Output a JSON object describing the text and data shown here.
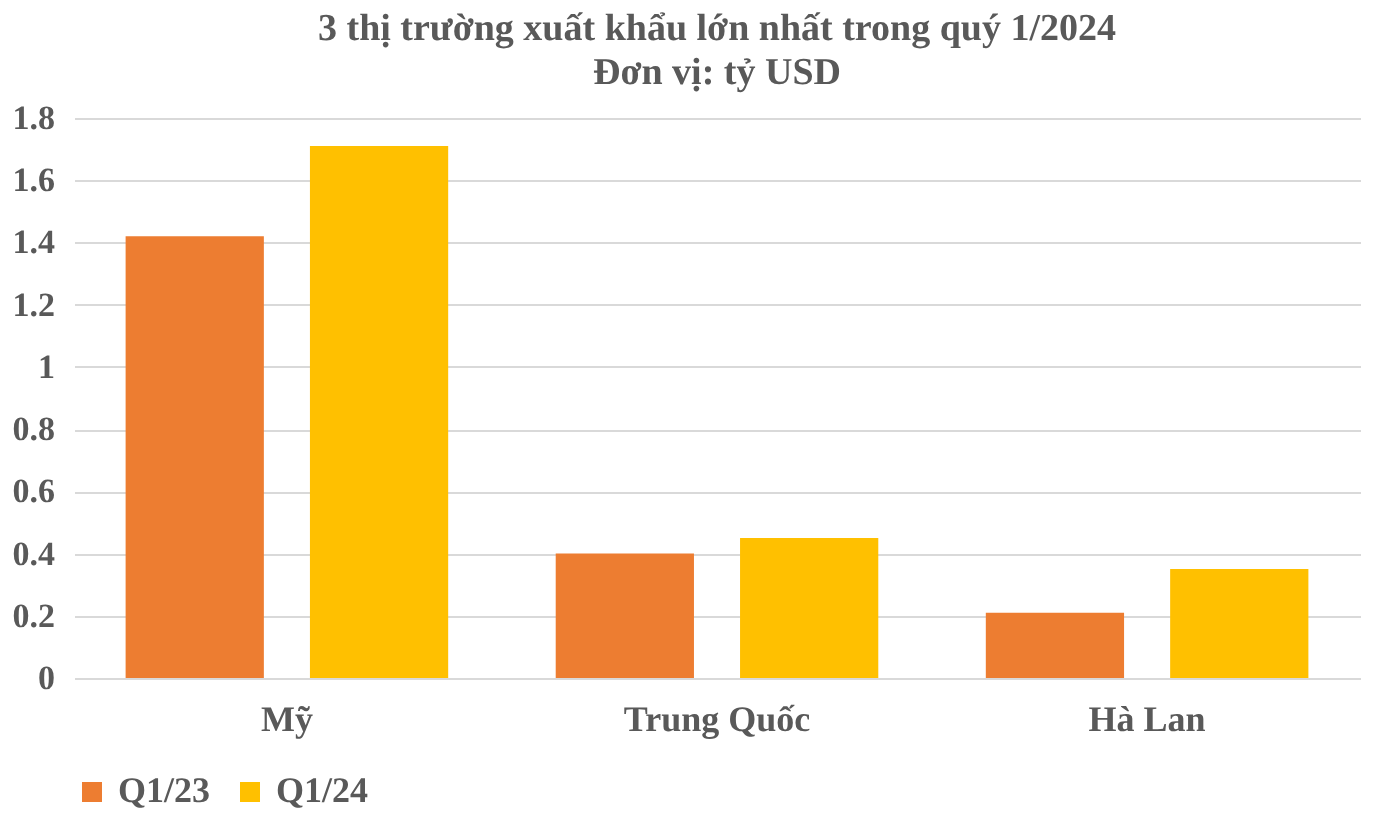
{
  "chart_data": {
    "type": "bar",
    "title": "3 thị trường xuất khẩu lớn nhất trong quý 1/2024",
    "subtitle": "Đơn vị: tỷ USD",
    "categories": [
      "Mỹ",
      "Trung Quốc",
      "Hà Lan"
    ],
    "series": [
      {
        "name": "Q1/23",
        "color": "#ed7d31",
        "values": [
          1.42,
          0.4,
          0.21
        ]
      },
      {
        "name": "Q1/24",
        "color": "#ffc000",
        "values": [
          1.71,
          0.45,
          0.35
        ]
      }
    ],
    "ylim": [
      0,
      1.8
    ],
    "yticks": [
      0,
      0.2,
      0.4,
      0.6,
      0.8,
      1,
      1.2,
      1.4,
      1.6,
      1.8
    ],
    "grid": "y",
    "legend": "bottom"
  }
}
